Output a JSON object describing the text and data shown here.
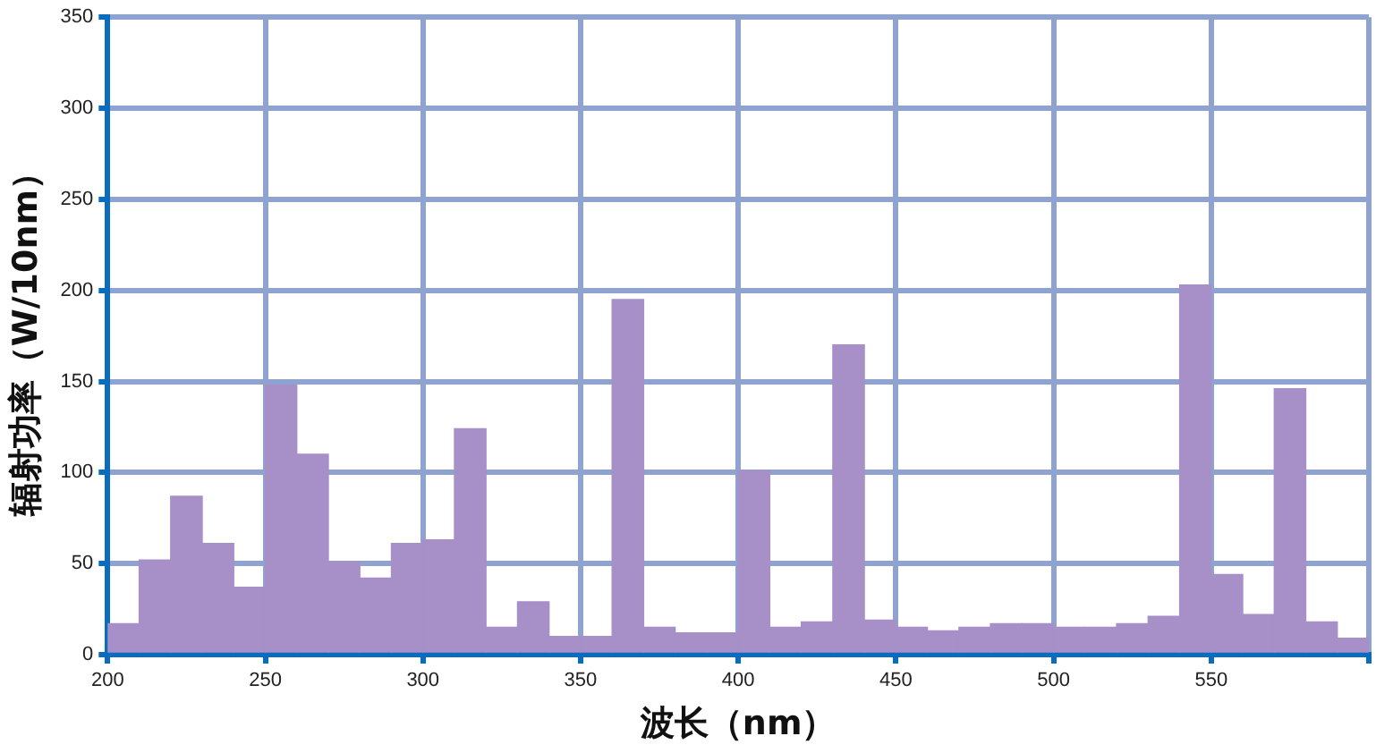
{
  "chart_data": {
    "type": "histogram",
    "xlabel": "波长（nm）",
    "ylabel": "辐射功率（W/10nm）",
    "bins": [
      200,
      210,
      220,
      230,
      240,
      250,
      260,
      270,
      280,
      290,
      300,
      310,
      320,
      330,
      340,
      350,
      360,
      370,
      380,
      390,
      400,
      410,
      420,
      430,
      440,
      450,
      460,
      470,
      480,
      490,
      500,
      510,
      520,
      530,
      540,
      550,
      560,
      570,
      580,
      590,
      600
    ],
    "values": [
      17,
      52,
      87,
      61,
      37,
      148,
      110,
      51,
      42,
      61,
      63,
      124,
      15,
      29,
      10,
      10,
      195,
      15,
      12,
      12,
      101,
      15,
      18,
      170,
      19,
      15,
      13,
      15,
      17,
      17,
      15,
      15,
      17,
      21,
      203,
      44,
      22,
      146,
      18,
      9
    ],
    "color": "#a78fc8",
    "xlim": [
      200,
      600
    ],
    "xticks": [
      200,
      250,
      300,
      350,
      400,
      450,
      500,
      550,
      {
        "value": 600,
        "label": null
      }
    ],
    "ylim": [
      0,
      350
    ],
    "yticks": [
      0,
      50,
      100,
      150,
      200,
      250,
      300,
      350
    ],
    "grid": true,
    "legend": false
  }
}
